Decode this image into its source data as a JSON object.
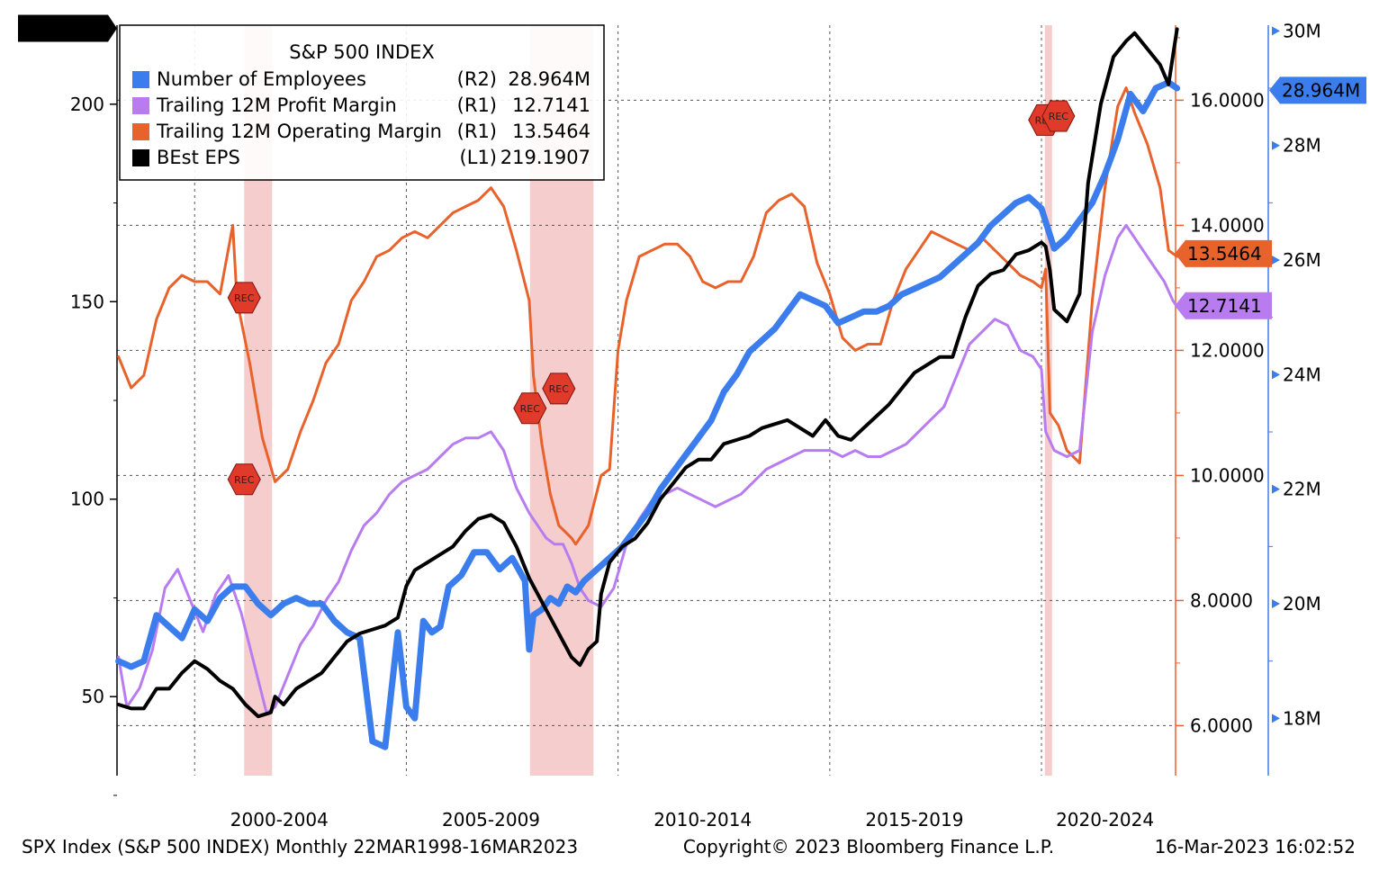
{
  "chart_data": {
    "type": "line",
    "title": "S&P 500 INDEX",
    "x_range": [
      "1998-03",
      "2023-03"
    ],
    "x_tick_labels": [
      "2000-2004",
      "2005-2009",
      "2010-2014",
      "2015-2019",
      "2020-2024"
    ],
    "axes": {
      "L1": {
        "ticks": [
          "50",
          "100",
          "150",
          "200"
        ],
        "range": [
          30,
          220
        ]
      },
      "R1": {
        "ticks": [
          "6.0000",
          "8.0000",
          "10.0000",
          "12.0000",
          "14.0000",
          "16.0000"
        ],
        "range": [
          5.2,
          17.2
        ]
      },
      "R2": {
        "ticks": [
          "18M",
          "20M",
          "22M",
          "24M",
          "26M",
          "28M",
          "30M"
        ],
        "range": [
          17.0,
          30.1
        ]
      }
    },
    "recessions": [
      [
        2001.17,
        2001.83
      ],
      [
        2007.92,
        2009.42
      ],
      [
        2020.08,
        2020.25
      ]
    ],
    "rec_label": "REC",
    "series": [
      {
        "name": "Trailing 12M Operating Margin",
        "axis": "R1",
        "legend_axis": "(R1)",
        "last": "13.5464",
        "color": "#e8622c",
        "width": 3,
        "x": [
          1998.2,
          1998.5,
          1998.8,
          1999.1,
          1999.4,
          1999.7,
          2000.0,
          2000.3,
          2000.6,
          2000.9,
          2001.0,
          2001.3,
          2001.6,
          2001.9,
          2002.2,
          2002.5,
          2002.8,
          2003.1,
          2003.4,
          2003.7,
          2004.0,
          2004.3,
          2004.6,
          2004.9,
          2005.2,
          2005.5,
          2005.8,
          2006.1,
          2006.4,
          2006.7,
          2007.0,
          2007.3,
          2007.6,
          2007.9,
          2008.0,
          2008.2,
          2008.4,
          2008.6,
          2008.9,
          2009.0,
          2009.3,
          2009.6,
          2009.8,
          2010.0,
          2010.2,
          2010.5,
          2010.8,
          2011.1,
          2011.4,
          2011.7,
          2012.0,
          2012.3,
          2012.6,
          2012.9,
          2013.2,
          2013.5,
          2013.8,
          2014.1,
          2014.4,
          2014.7,
          2015.0,
          2015.3,
          2015.6,
          2015.9,
          2016.2,
          2016.5,
          2016.8,
          2017.1,
          2017.4,
          2017.7,
          2018.0,
          2018.3,
          2018.6,
          2018.9,
          2019.2,
          2019.5,
          2019.8,
          2020.0,
          2020.1,
          2020.2,
          2020.4,
          2020.6,
          2020.9,
          2021.2,
          2021.5,
          2021.8,
          2022.0,
          2022.2,
          2022.5,
          2022.8,
          2023.0,
          2023.2
        ],
        "values": [
          11.9,
          11.4,
          11.6,
          12.5,
          13.0,
          13.2,
          13.1,
          13.1,
          12.9,
          14.0,
          12.8,
          11.8,
          10.6,
          9.9,
          10.1,
          10.7,
          11.2,
          11.8,
          12.1,
          12.8,
          13.1,
          13.5,
          13.6,
          13.8,
          13.9,
          13.8,
          14.0,
          14.2,
          14.3,
          14.4,
          14.6,
          14.3,
          13.6,
          12.8,
          11.6,
          10.5,
          9.7,
          9.2,
          9.0,
          8.9,
          9.2,
          10.0,
          10.1,
          12.0,
          12.8,
          13.5,
          13.6,
          13.7,
          13.7,
          13.5,
          13.1,
          13.0,
          13.1,
          13.1,
          13.5,
          14.2,
          14.4,
          14.5,
          14.3,
          13.4,
          12.9,
          12.2,
          12.0,
          12.1,
          12.1,
          12.8,
          13.3,
          13.6,
          13.9,
          13.8,
          13.7,
          13.6,
          13.8,
          13.6,
          13.4,
          13.2,
          13.1,
          13.0,
          13.3,
          11.0,
          10.8,
          10.4,
          10.2,
          12.8,
          14.6,
          15.9,
          16.2,
          15.8,
          15.3,
          14.6,
          13.6,
          13.5
        ]
      },
      {
        "name": "Trailing 12M Profit Margin",
        "axis": "R1",
        "legend_axis": "(R1)",
        "last": "12.7141",
        "color": "#b87cf0",
        "width": 3,
        "x": [
          1998.2,
          1998.4,
          1998.7,
          1999.0,
          1999.3,
          1999.6,
          1999.9,
          2000.2,
          2000.5,
          2000.8,
          2001.1,
          2001.4,
          2001.7,
          2001.9,
          2002.2,
          2002.5,
          2002.8,
          2003.1,
          2003.4,
          2003.7,
          2004.0,
          2004.3,
          2004.6,
          2004.9,
          2005.2,
          2005.5,
          2005.8,
          2006.1,
          2006.4,
          2006.7,
          2007.0,
          2007.3,
          2007.6,
          2007.9,
          2008.1,
          2008.3,
          2008.5,
          2008.7,
          2008.9,
          2009.1,
          2009.3,
          2009.6,
          2009.9,
          2010.2,
          2010.5,
          2010.8,
          2011.1,
          2011.4,
          2011.7,
          2012.0,
          2012.3,
          2012.6,
          2012.9,
          2013.2,
          2013.5,
          2013.8,
          2014.1,
          2014.4,
          2014.7,
          2015.0,
          2015.3,
          2015.6,
          2015.9,
          2016.2,
          2016.5,
          2016.8,
          2017.1,
          2017.4,
          2017.7,
          2018.0,
          2018.3,
          2018.6,
          2018.9,
          2019.2,
          2019.5,
          2019.8,
          2020.0,
          2020.1,
          2020.3,
          2020.6,
          2020.9,
          2021.2,
          2021.5,
          2021.8,
          2022.0,
          2022.3,
          2022.6,
          2022.9,
          2023.1,
          2023.2
        ],
        "values": [
          7.1,
          6.3,
          6.6,
          7.2,
          8.2,
          8.5,
          8.0,
          7.5,
          8.1,
          8.4,
          7.8,
          7.0,
          6.2,
          6.3,
          6.8,
          7.3,
          7.6,
          8.0,
          8.3,
          8.8,
          9.2,
          9.4,
          9.7,
          9.9,
          10.0,
          10.1,
          10.3,
          10.5,
          10.6,
          10.6,
          10.7,
          10.4,
          9.8,
          9.4,
          9.2,
          9.0,
          8.9,
          8.9,
          8.6,
          8.2,
          8.0,
          7.9,
          8.2,
          8.9,
          9.3,
          9.6,
          9.7,
          9.8,
          9.7,
          9.6,
          9.5,
          9.6,
          9.7,
          9.9,
          10.1,
          10.2,
          10.3,
          10.4,
          10.4,
          10.4,
          10.3,
          10.4,
          10.3,
          10.3,
          10.4,
          10.5,
          10.7,
          10.9,
          11.1,
          11.6,
          12.1,
          12.3,
          12.5,
          12.4,
          12.0,
          11.9,
          11.7,
          10.7,
          10.4,
          10.3,
          10.4,
          12.3,
          13.2,
          13.8,
          14.0,
          13.7,
          13.4,
          13.1,
          12.8,
          12.7
        ]
      },
      {
        "name": "Number of Employees",
        "axis": "R2",
        "legend_axis": "(R2)",
        "last": "28.964M",
        "color": "#3b7ded",
        "width": 7,
        "x": [
          1998.2,
          1998.5,
          1998.8,
          1999.1,
          1999.4,
          1999.7,
          2000.0,
          2000.3,
          2000.6,
          2000.9,
          2001.2,
          2001.5,
          2001.8,
          2002.1,
          2002.4,
          2002.7,
          2003.0,
          2003.3,
          2003.6,
          2003.9,
          2004.2,
          2004.5,
          2004.8,
          2005.0,
          2005.2,
          2005.4,
          2005.6,
          2005.8,
          2006.0,
          2006.3,
          2006.6,
          2006.9,
          2007.2,
          2007.5,
          2007.8,
          2007.9,
          2008.0,
          2008.2,
          2008.4,
          2008.6,
          2008.8,
          2009.0,
          2009.2,
          2009.5,
          2009.8,
          2010.1,
          2010.4,
          2010.7,
          2011.0,
          2011.3,
          2011.6,
          2011.9,
          2012.2,
          2012.5,
          2012.8,
          2013.1,
          2013.4,
          2013.7,
          2014.0,
          2014.3,
          2014.6,
          2014.9,
          2015.2,
          2015.5,
          2015.8,
          2016.1,
          2016.4,
          2016.7,
          2017.0,
          2017.3,
          2017.6,
          2017.9,
          2018.2,
          2018.5,
          2018.8,
          2019.1,
          2019.4,
          2019.7,
          2020.0,
          2020.3,
          2020.6,
          2020.9,
          2021.2,
          2021.5,
          2021.8,
          2022.1,
          2022.4,
          2022.7,
          2023.0,
          2023.2
        ],
        "values": [
          19.0,
          18.9,
          19.0,
          19.8,
          19.6,
          19.4,
          19.9,
          19.7,
          20.1,
          20.3,
          20.3,
          20.0,
          19.8,
          20.0,
          20.1,
          20.0,
          20.0,
          19.7,
          19.5,
          19.4,
          17.6,
          17.5,
          19.5,
          18.2,
          18.0,
          19.7,
          19.5,
          19.6,
          20.3,
          20.5,
          20.9,
          20.9,
          20.6,
          20.8,
          20.4,
          19.2,
          19.8,
          19.9,
          20.1,
          20.0,
          20.3,
          20.2,
          20.4,
          20.6,
          20.8,
          21.0,
          21.3,
          21.6,
          22.0,
          22.3,
          22.6,
          22.9,
          23.2,
          23.7,
          24.0,
          24.4,
          24.6,
          24.8,
          25.1,
          25.4,
          25.3,
          25.2,
          24.9,
          25.0,
          25.1,
          25.1,
          25.2,
          25.4,
          25.5,
          25.6,
          25.7,
          25.9,
          26.1,
          26.3,
          26.6,
          26.8,
          27.0,
          27.1,
          26.9,
          26.2,
          26.4,
          26.7,
          27.0,
          27.5,
          28.1,
          28.9,
          28.6,
          29.0,
          29.1,
          29.0
        ]
      },
      {
        "name": "BEst EPS",
        "axis": "L1",
        "legend_axis": "(L1)",
        "last": "219.1907",
        "color": "#000000",
        "width": 4,
        "x": [
          1998.2,
          1998.5,
          1998.8,
          1999.1,
          1999.4,
          1999.7,
          2000.0,
          2000.3,
          2000.6,
          2000.9,
          2001.2,
          2001.5,
          2001.8,
          2001.9,
          2002.1,
          2002.4,
          2002.7,
          2003.0,
          2003.3,
          2003.6,
          2003.9,
          2004.2,
          2004.5,
          2004.8,
          2005.0,
          2005.2,
          2005.5,
          2005.8,
          2006.1,
          2006.4,
          2006.7,
          2007.0,
          2007.3,
          2007.6,
          2007.9,
          2008.1,
          2008.3,
          2008.5,
          2008.7,
          2008.9,
          2009.1,
          2009.3,
          2009.5,
          2009.6,
          2009.8,
          2010.1,
          2010.4,
          2010.7,
          2011.0,
          2011.3,
          2011.6,
          2011.9,
          2012.2,
          2012.5,
          2012.8,
          2013.1,
          2013.4,
          2013.7,
          2014.0,
          2014.3,
          2014.6,
          2014.9,
          2015.2,
          2015.5,
          2015.8,
          2016.1,
          2016.4,
          2016.7,
          2017.0,
          2017.3,
          2017.6,
          2017.9,
          2018.2,
          2018.5,
          2018.8,
          2019.1,
          2019.4,
          2019.7,
          2020.0,
          2020.1,
          2020.2,
          2020.3,
          2020.6,
          2020.9,
          2021.1,
          2021.4,
          2021.7,
          2022.0,
          2022.2,
          2022.5,
          2022.8,
          2023.0,
          2023.2
        ],
        "values": [
          48,
          47,
          47,
          52,
          52,
          56,
          59,
          57,
          54,
          52,
          48,
          45,
          46,
          50,
          48,
          52,
          54,
          56,
          60,
          64,
          66,
          67,
          68,
          70,
          78,
          82,
          84,
          86,
          88,
          92,
          95,
          96,
          94,
          88,
          80,
          76,
          72,
          68,
          64,
          60,
          58,
          62,
          64,
          76,
          84,
          88,
          90,
          94,
          100,
          104,
          108,
          110,
          110,
          114,
          115,
          116,
          118,
          119,
          120,
          118,
          116,
          120,
          116,
          115,
          118,
          121,
          124,
          128,
          132,
          134,
          136,
          136,
          146,
          154,
          157,
          158,
          162,
          163,
          165,
          164,
          158,
          148,
          145,
          152,
          180,
          200,
          212,
          216,
          218,
          214,
          210,
          205,
          219
        ]
      }
    ]
  },
  "footer": {
    "left": "SPX Index (S&P 500 INDEX)  Monthly 22MAR1998-16MAR2023",
    "center": "Copyright© 2023 Bloomberg Finance L.P.",
    "right": "16-Mar-2023 16:02:52"
  }
}
